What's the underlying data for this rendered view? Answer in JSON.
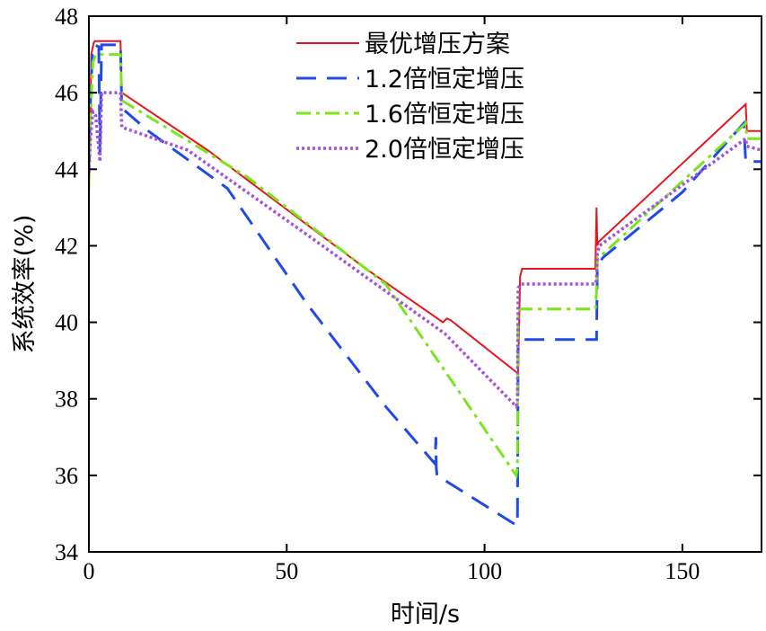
{
  "chart_data": {
    "type": "line",
    "xlabel": "时间/s",
    "ylabel": "系统效率(%)",
    "xlim": [
      0,
      170
    ],
    "ylim": [
      34,
      48
    ],
    "xticks": [
      0,
      50,
      100,
      150
    ],
    "yticks": [
      34,
      36,
      38,
      40,
      42,
      44,
      46,
      48
    ],
    "grid": false,
    "legend_position": "top-right",
    "series": [
      {
        "name": "最优增压方案",
        "color": "#e8161b",
        "dash": "solid",
        "x": [
          0,
          0.3,
          0.6,
          1.2,
          1.5,
          8,
          8.3,
          30,
          70,
          89.5,
          90.5,
          91.5,
          108,
          108.5,
          109,
          109.5,
          128,
          128.3,
          128.5,
          128.8,
          166,
          166.3,
          170
        ],
        "y": [
          43.3,
          44.6,
          47.0,
          47.3,
          47.35,
          47.35,
          46.0,
          44.5,
          41.4,
          40.0,
          40.1,
          40.05,
          38.7,
          38.7,
          41.2,
          41.4,
          41.4,
          43.0,
          42.0,
          42.1,
          45.7,
          45.0,
          45.0
        ]
      },
      {
        "name": "1.2倍恒定增压",
        "color": "#1f4ae8",
        "dash": "long",
        "x": [
          0,
          0.4,
          0.9,
          1.5,
          2.5,
          2.8,
          3.2,
          8,
          8.3,
          15,
          35,
          55,
          75,
          87.5,
          87.7,
          87.8,
          88,
          108,
          108.3,
          108.5,
          109,
          128,
          128.3,
          128.5,
          130,
          150,
          165.5,
          166,
          170
        ],
        "y": [
          44.1,
          45.8,
          47.1,
          47.25,
          47.2,
          44.4,
          47.25,
          47.25,
          45.6,
          45.0,
          43.5,
          40.5,
          37.8,
          36.3,
          37.0,
          36.2,
          36.0,
          34.7,
          34.7,
          39.5,
          39.55,
          39.55,
          39.55,
          41.5,
          41.7,
          43.4,
          45.2,
          44.2,
          44.2
        ]
      },
      {
        "name": "1.6倍恒定增压",
        "color": "#7be51b",
        "dash": "dashdot",
        "x": [
          0,
          0.4,
          1,
          1.8,
          8,
          8.3,
          40,
          75,
          108,
          108.3,
          108.5,
          109.3,
          128,
          128.3,
          128.5,
          129,
          166,
          166.3,
          170
        ],
        "y": [
          43.6,
          45.4,
          46.8,
          47.0,
          47.0,
          45.8,
          43.8,
          41.0,
          36.0,
          36.2,
          40.3,
          40.35,
          40.35,
          40.8,
          41.7,
          41.7,
          45.2,
          44.8,
          44.8
        ]
      },
      {
        "name": "2.0倍恒定增压",
        "color": "#a150e0",
        "dash": "dot",
        "x": [
          0,
          0.4,
          1,
          1.7,
          2.8,
          3.2,
          8,
          8.3,
          25,
          55,
          90,
          108,
          108.3,
          108.5,
          109.2,
          128,
          128.3,
          128.5,
          129,
          166,
          166.3,
          170
        ],
        "y": [
          43.9,
          44.8,
          45.5,
          45.4,
          44.2,
          46.0,
          46.0,
          45.1,
          44.5,
          42.3,
          39.7,
          37.8,
          37.9,
          40.9,
          41.0,
          41.0,
          41.1,
          41.8,
          42.0,
          44.8,
          44.6,
          44.5
        ]
      }
    ]
  }
}
